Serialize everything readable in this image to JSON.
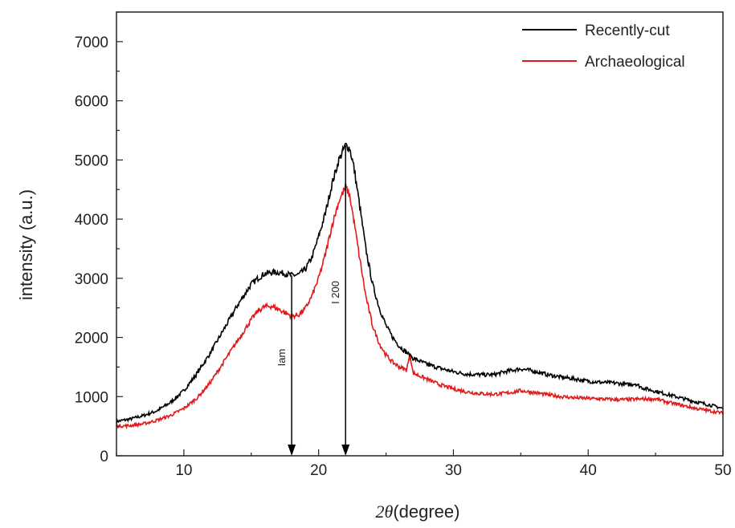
{
  "chart_data": {
    "type": "line",
    "xlabel_symbol": "2θ",
    "xlabel_unit": "(degree)",
    "ylabel": "intensity (a.u.)",
    "xlim": [
      5,
      50
    ],
    "ylim": [
      0,
      7500
    ],
    "xticks": [
      10,
      20,
      30,
      40,
      50
    ],
    "yticks": [
      0,
      1000,
      2000,
      3000,
      4000,
      5000,
      6000,
      7000
    ],
    "grid": false,
    "legend_position": "top-right",
    "series": [
      {
        "name": "Recently-cut",
        "color": "#000000",
        "x": [
          5,
          6,
          7,
          8,
          9,
          10,
          11,
          12,
          13,
          14,
          15,
          15.5,
          16,
          16.5,
          17,
          17.5,
          18,
          18.5,
          19,
          19.5,
          20,
          20.5,
          21,
          21.5,
          22,
          22.3,
          22.6,
          23,
          23.5,
          24,
          24.5,
          25,
          25.5,
          26,
          26.5,
          27,
          28,
          29,
          30,
          31,
          32,
          33,
          34,
          35,
          36,
          37,
          38,
          39,
          40,
          41,
          42,
          43,
          43.5,
          44,
          45,
          46,
          47,
          48,
          49,
          50
        ],
        "y": [
          580,
          620,
          680,
          760,
          900,
          1100,
          1400,
          1750,
          2150,
          2550,
          2900,
          3000,
          3080,
          3100,
          3100,
          3080,
          3050,
          3060,
          3150,
          3350,
          3700,
          4100,
          4600,
          5000,
          5250,
          5200,
          4900,
          4300,
          3500,
          2900,
          2500,
          2200,
          2000,
          1850,
          1750,
          1650,
          1550,
          1480,
          1420,
          1380,
          1370,
          1370,
          1430,
          1470,
          1430,
          1370,
          1330,
          1300,
          1260,
          1240,
          1230,
          1200,
          1220,
          1150,
          1090,
          1030,
          970,
          910,
          860,
          800
        ]
      },
      {
        "name": "Archaeological",
        "color": "#e31a1c",
        "x": [
          5,
          6,
          7,
          8,
          9,
          10,
          11,
          12,
          13,
          14,
          15,
          15.5,
          16,
          16.5,
          17,
          17.5,
          18,
          18.5,
          19,
          19.5,
          20,
          20.5,
          21,
          21.5,
          22,
          22.3,
          22.6,
          23,
          23.5,
          24,
          24.5,
          25,
          25.5,
          26,
          26.5,
          26.8,
          27,
          28,
          29,
          30,
          31,
          32,
          33,
          34,
          35,
          36,
          37,
          38,
          39,
          40,
          41,
          42,
          43,
          44,
          45,
          46,
          47,
          48,
          49,
          50
        ],
        "y": [
          500,
          510,
          540,
          600,
          680,
          800,
          980,
          1250,
          1600,
          1950,
          2300,
          2450,
          2520,
          2530,
          2480,
          2420,
          2360,
          2380,
          2480,
          2700,
          3000,
          3400,
          3900,
          4300,
          4550,
          4400,
          4000,
          3400,
          2700,
          2200,
          1900,
          1700,
          1580,
          1500,
          1450,
          1700,
          1400,
          1300,
          1200,
          1130,
          1080,
          1050,
          1040,
          1060,
          1100,
          1070,
          1030,
          1000,
          980,
          970,
          960,
          950,
          950,
          960,
          960,
          900,
          850,
          800,
          760,
          720
        ]
      }
    ],
    "annotations": [
      {
        "text": "Iam",
        "x": 18,
        "y_top": 3050,
        "y_bottom": 0
      },
      {
        "text": "I 200",
        "x": 22,
        "y_top": 5250,
        "y_bottom": 0
      }
    ]
  }
}
